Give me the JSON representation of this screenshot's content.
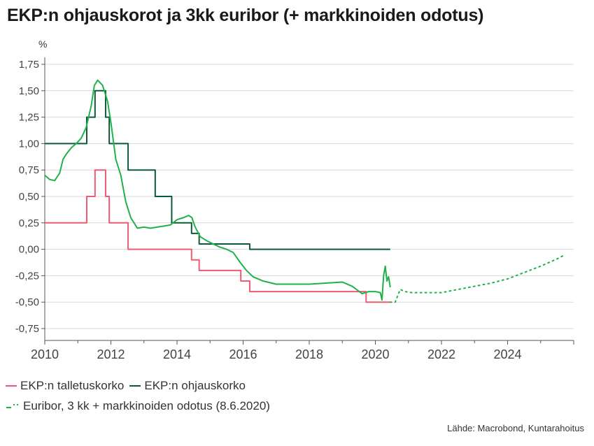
{
  "title": "EKP:n ohjauskorot ja 3kk euribor (+ markkinoiden odotus)",
  "source": "Lähde: Macrobond, Kuntarahoitus",
  "colors": {
    "deposit": "#f05a73",
    "main": "#0d5a3a",
    "euribor": "#21b14a",
    "grid": "#d9d9d9",
    "axis": "#555555"
  },
  "chart_data": {
    "type": "line",
    "title": "EKP:n ohjauskorot ja 3kk euribor (+ markkinoiden odotus)",
    "ylabel": "%",
    "xlim": [
      2010,
      2026
    ],
    "ylim": [
      -0.75,
      1.75
    ],
    "yticks": [
      1.75,
      1.5,
      1.25,
      1.0,
      0.75,
      0.5,
      0.25,
      0.0,
      -0.25,
      -0.5,
      -0.75
    ],
    "ytick_labels": [
      "1,75",
      "1,50",
      "1,25",
      "1,00",
      "0,75",
      "0,50",
      "0,25",
      "0,00",
      "-0,25",
      "-0,50",
      "-0,75"
    ],
    "xticks": [
      2010,
      2012,
      2014,
      2016,
      2018,
      2020,
      2022,
      2024
    ],
    "xtick_labels": [
      "2010",
      "2012",
      "2014",
      "2016",
      "2018",
      "2020",
      "2022",
      "2024"
    ],
    "grid": true,
    "legend_position": "bottom-left",
    "series": [
      {
        "name": "EKP:n talletuskorko",
        "style": "step",
        "x": [
          2010.0,
          2011.27,
          2011.52,
          2011.84,
          2011.95,
          2012.52,
          2014.44,
          2014.67,
          2015.93,
          2016.2,
          2019.72,
          2020.45
        ],
        "y": [
          0.25,
          0.5,
          0.75,
          0.5,
          0.25,
          0.0,
          -0.1,
          -0.2,
          -0.3,
          -0.4,
          -0.5,
          -0.5
        ]
      },
      {
        "name": "EKP:n ohjauskorko",
        "style": "step",
        "x": [
          2010.0,
          2011.27,
          2011.52,
          2011.84,
          2011.95,
          2012.52,
          2013.34,
          2013.84,
          2014.44,
          2014.67,
          2016.2,
          2020.45
        ],
        "y": [
          1.0,
          1.25,
          1.5,
          1.25,
          1.0,
          0.75,
          0.5,
          0.25,
          0.15,
          0.05,
          0.0,
          0.0
        ]
      },
      {
        "name": "Euribor, 3 kk + markkinoiden odotus (8.6.2020)",
        "style": "line",
        "x": [
          2010.0,
          2010.15,
          2010.3,
          2010.45,
          2010.55,
          2010.65,
          2010.8,
          2010.95,
          2011.1,
          2011.25,
          2011.4,
          2011.5,
          2011.6,
          2011.75,
          2011.9,
          2012.0,
          2012.15,
          2012.3,
          2012.45,
          2012.6,
          2012.8,
          2013.0,
          2013.2,
          2013.4,
          2013.6,
          2013.8,
          2014.0,
          2014.2,
          2014.35,
          2014.45,
          2014.55,
          2014.7,
          2014.9,
          2015.1,
          2015.3,
          2015.5,
          2015.7,
          2015.9,
          2016.1,
          2016.3,
          2016.6,
          2017.0,
          2017.5,
          2018.0,
          2018.5,
          2019.0,
          2019.3,
          2019.6,
          2019.8,
          2020.0,
          2020.15,
          2020.2,
          2020.25,
          2020.3,
          2020.35,
          2020.4,
          2020.45
        ],
        "y": [
          0.7,
          0.66,
          0.65,
          0.72,
          0.85,
          0.9,
          0.96,
          1.0,
          1.05,
          1.15,
          1.35,
          1.55,
          1.6,
          1.55,
          1.4,
          1.2,
          0.85,
          0.7,
          0.45,
          0.3,
          0.2,
          0.21,
          0.2,
          0.21,
          0.22,
          0.23,
          0.28,
          0.3,
          0.32,
          0.3,
          0.21,
          0.12,
          0.08,
          0.05,
          0.02,
          0.0,
          -0.03,
          -0.12,
          -0.2,
          -0.26,
          -0.3,
          -0.33,
          -0.33,
          -0.33,
          -0.32,
          -0.31,
          -0.35,
          -0.42,
          -0.4,
          -0.4,
          -0.41,
          -0.48,
          -0.25,
          -0.16,
          -0.3,
          -0.26,
          -0.36
        ]
      },
      {
        "name": "Euribor, 3 kk + markkinoiden odotus (8.6.2020)",
        "style": "dotted",
        "x": [
          2020.45,
          2020.6,
          2020.75,
          2020.9,
          2021.1,
          2021.5,
          2022.0,
          2022.5,
          2023.0,
          2023.5,
          2024.0,
          2024.5,
          2025.0,
          2025.5,
          2025.75
        ],
        "y": [
          -0.5,
          -0.5,
          -0.38,
          -0.4,
          -0.41,
          -0.41,
          -0.41,
          -0.38,
          -0.35,
          -0.32,
          -0.28,
          -0.22,
          -0.16,
          -0.09,
          -0.05
        ]
      }
    ]
  },
  "legend": {
    "deposit_label": "EKP:n talletuskorko",
    "main_label": "EKP:n ohjauskorko",
    "euribor_label": "Euribor, 3 kk + markkinoiden odotus (8.6.2020)"
  }
}
